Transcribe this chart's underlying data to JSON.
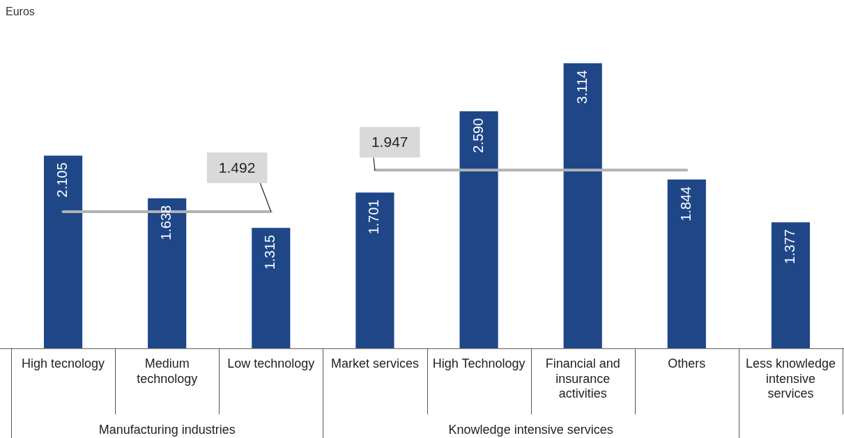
{
  "chart_data": {
    "type": "bar",
    "ylabel": "Euros",
    "categories": [
      "High tecnology",
      "Medium technology",
      "Low technology",
      "Market services",
      "High Technology",
      "Financial and insurance activities",
      "Others",
      "Less knowledge intensive services"
    ],
    "series": [
      {
        "color": "#1f4788",
        "values": [
          2.105,
          1.638,
          1.315,
          1.701,
          2.59,
          3.114,
          1.844,
          1.377
        ],
        "value_labels": [
          "2.105",
          "1.638",
          "1.315",
          "1.701",
          "2.590",
          "3.114",
          "1.844",
          "1.377"
        ]
      },
      {
        "type": "line",
        "color": "#b3b3b3",
        "values": [
          1.492,
          1.492,
          1.492,
          null,
          null,
          null,
          null,
          null
        ],
        "value_labels": [
          null,
          null,
          "1.492",
          null,
          null,
          null,
          null,
          null
        ]
      },
      {
        "type": "line",
        "color": "#b3b3b3",
        "values": [
          null,
          null,
          null,
          1.947,
          1.947,
          1.947,
          1.947,
          null
        ],
        "value_labels": [
          null,
          null,
          null,
          "1.947",
          null,
          null,
          null,
          null
        ]
      }
    ],
    "annotations": [
      "Manufacturing industries",
      "Knowledge intensive services"
    ],
    "legend": false,
    "grid": false,
    "marker": "none",
    "line_style": "solid"
  }
}
